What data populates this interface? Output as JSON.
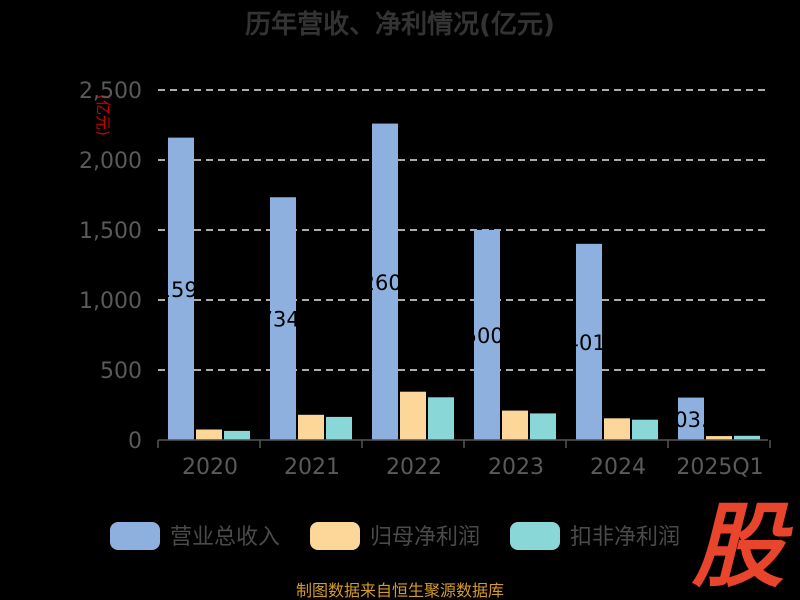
{
  "chart_data": {
    "type": "bar",
    "title": "历年营收、净利情况(亿元)",
    "ylabel": "(亿元)",
    "categories": [
      "2020",
      "2021",
      "2022",
      "2023",
      "2024",
      "2025Q1"
    ],
    "ylim": [
      0,
      2500
    ],
    "yticks": [
      0,
      500,
      1000,
      1500,
      2000,
      2500
    ],
    "ytick_labels": [
      "0",
      "500",
      "1,000",
      "1,500",
      "2,000",
      "2,500"
    ],
    "grid": true,
    "legend_position": "bottom",
    "series": [
      {
        "name": "营业总收入",
        "color": "#8eb0de",
        "values": [
          2159.9,
          1734.0,
          2260.2,
          1500.6,
          1401.2,
          303.1
        ],
        "labels": [
          "2159.9",
          "1734.0",
          "2260.2",
          "1500.6",
          "1401.2",
          "303.1"
        ]
      },
      {
        "name": "归母净利润",
        "color": "#fdd79a",
        "values": [
          75,
          180,
          345,
          210,
          155,
          28
        ]
      },
      {
        "name": "扣非净利润",
        "color": "#8ad7d8",
        "values": [
          65,
          165,
          305,
          190,
          145,
          30
        ]
      }
    ]
  },
  "source_text": "制图数据来自恒生聚源数据库",
  "logo_text": "股"
}
